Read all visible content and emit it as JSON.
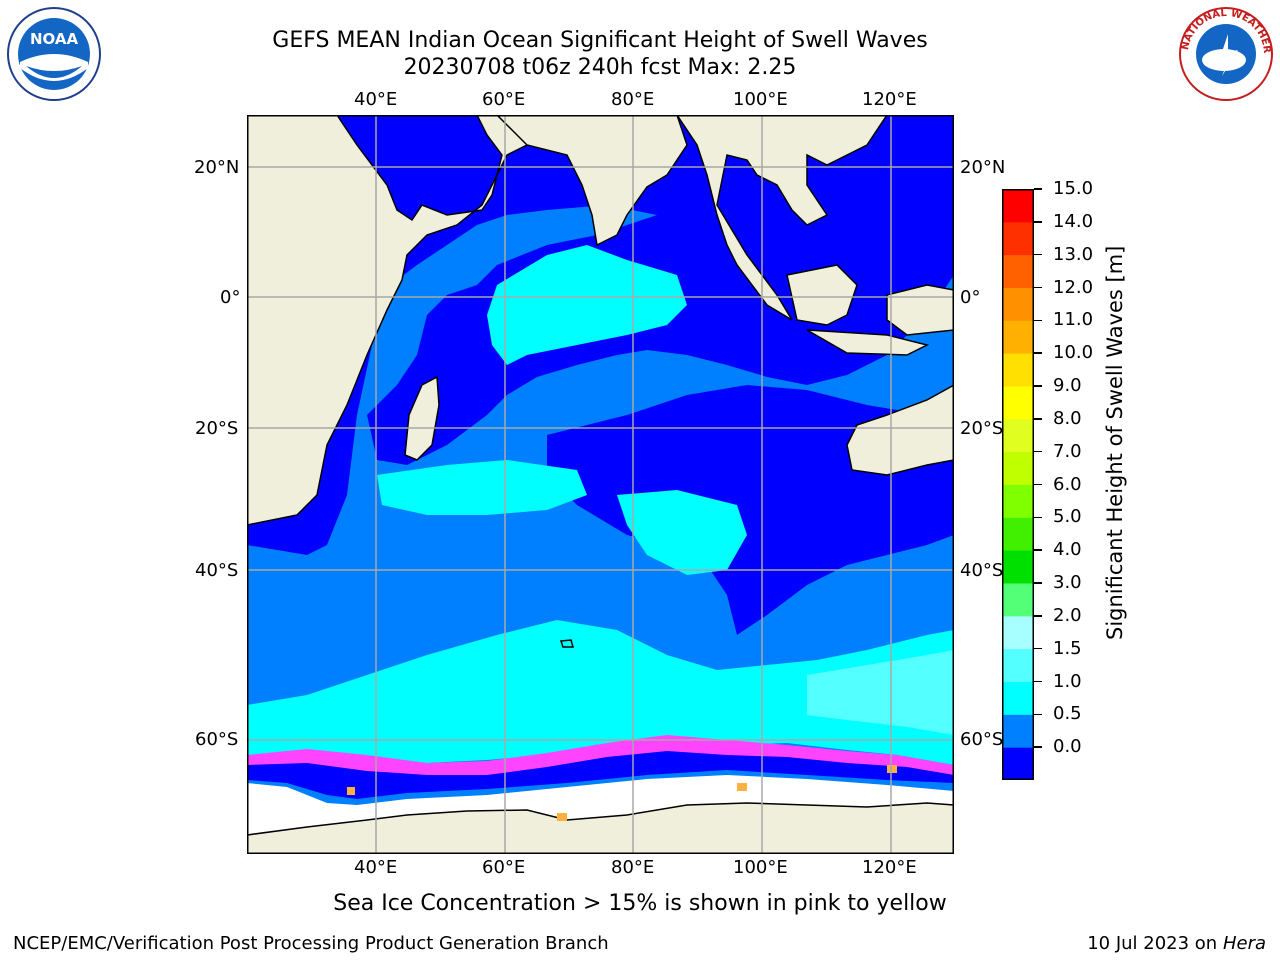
{
  "header": {
    "title_line1": "GEFS MEAN Indian Ocean Significant Height of Swell Waves",
    "title_line2": "20230708 t06z 240h fcst   Max: 2.25"
  },
  "logos": {
    "left": {
      "name": "noara-logo",
      "text": "NOAA"
    },
    "right": {
      "name": "nws-logo",
      "text": "NATIONAL WEATHER SERVICE"
    }
  },
  "map": {
    "lon_ticks": [
      "40°E",
      "60°E",
      "80°E",
      "100°E",
      "120°E"
    ],
    "lat_ticks": [
      "20°N",
      "0°",
      "20°S",
      "40°S",
      "60°S"
    ],
    "ocean_colors": {
      "deep": "#0000ff",
      "mid": "#0080ff",
      "light": "#00ffff",
      "lighter": "#54ffff",
      "land": "#efefdc",
      "ice": "#ffffff",
      "ice_edge": [
        "#ff44ff",
        "#ff80c0",
        "#ffb040"
      ]
    }
  },
  "colorbar": {
    "label": "Significant Height of Swell Waves [m]",
    "ticks": [
      "15.0",
      "14.0",
      "13.0",
      "12.0",
      "11.0",
      "10.0",
      "9.0",
      "8.0",
      "7.0",
      "6.0",
      "5.0",
      "4.0",
      "3.0",
      "2.0",
      "1.5",
      "1.0",
      "0.5",
      "0.0"
    ],
    "colors_bottom_to_top": [
      "#0000ff",
      "#0080ff",
      "#00ffff",
      "#54ffff",
      "#a8ffff",
      "#54ff78",
      "#00e000",
      "#40f000",
      "#80ff00",
      "#c0ff00",
      "#e0ff20",
      "#ffff00",
      "#ffe000",
      "#ffb000",
      "#ff9000",
      "#ff6000",
      "#ff3000",
      "#ff0000"
    ]
  },
  "caption": "Sea Ice Concentration > 15% is shown in pink to yellow",
  "footer": {
    "left": "NCEP/EMC/Verification Post Processing Product Generation Branch",
    "right_prefix": "10 Jul 2023 on ",
    "right_italic": "Hera"
  }
}
